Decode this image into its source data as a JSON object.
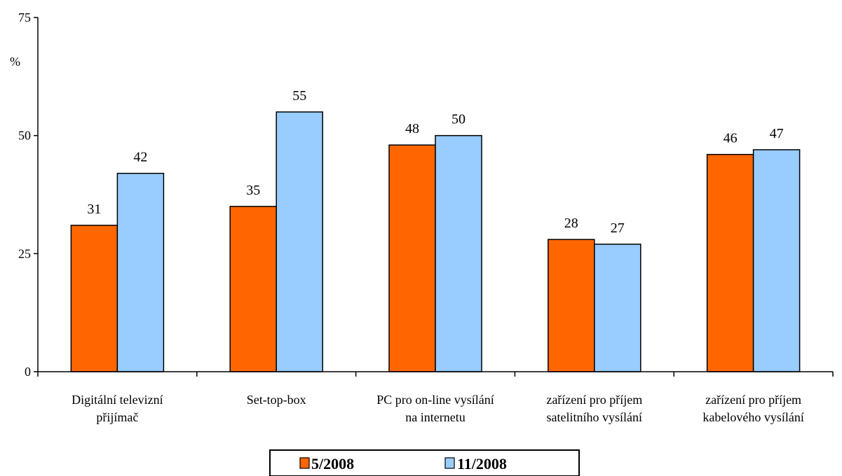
{
  "chart_data": {
    "type": "bar",
    "unit_label": "%",
    "ylim": [
      0,
      75
    ],
    "yticks": [
      0,
      25,
      50,
      75
    ],
    "grid": false,
    "legend_position": "bottom-center",
    "categories": [
      [
        "Digitální televizní",
        "přijímač"
      ],
      [
        "Set-top-box"
      ],
      [
        "PC pro on-line vysílání",
        "na internetu"
      ],
      [
        "zařízení pro příjem",
        "satelitního vysílání"
      ],
      [
        "zařízení pro příjem",
        "kabelového vysílání"
      ]
    ],
    "series": [
      {
        "name": "5/2008",
        "color": "#ff6600",
        "values": [
          31,
          35,
          48,
          28,
          46
        ]
      },
      {
        "name": "11/2008",
        "color": "#99ccff",
        "values": [
          42,
          55,
          50,
          27,
          47
        ]
      }
    ]
  }
}
